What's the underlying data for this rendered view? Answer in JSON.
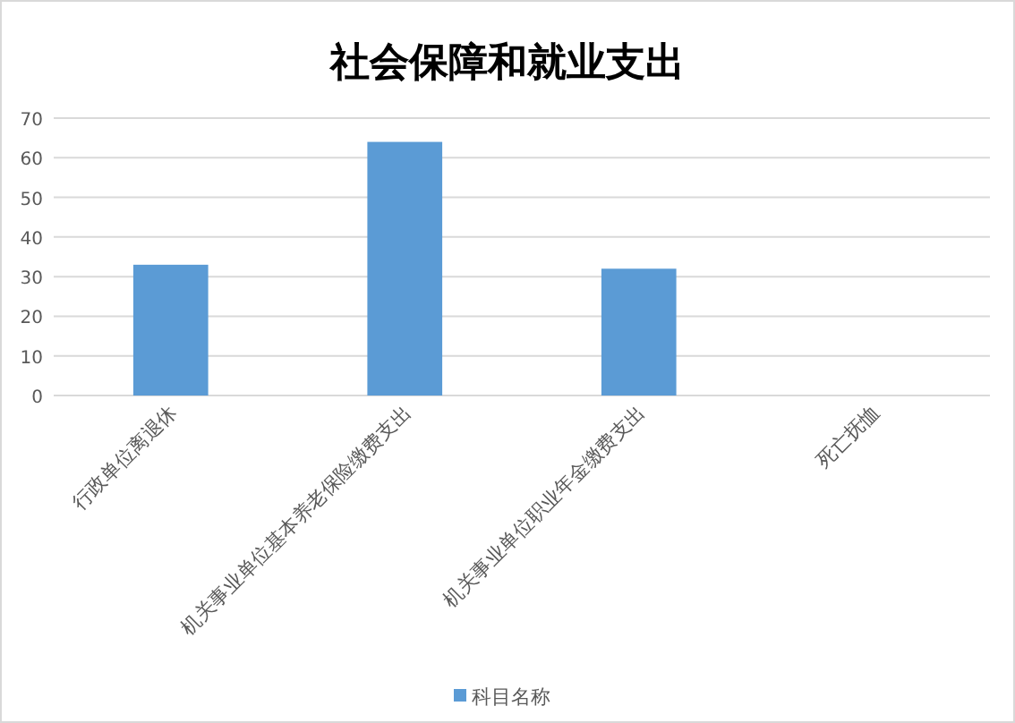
{
  "chart_data": {
    "type": "bar",
    "title": "社会保障和就业支出",
    "categories": [
      "行政单位离退休",
      "机关事业单位基本养老保险缴费支出",
      "机关事业单位职业年金缴费支出",
      "死亡抚恤"
    ],
    "series": [
      {
        "name": "科目名称",
        "color": "#5b9bd5",
        "values": [
          33,
          64,
          32,
          0
        ]
      }
    ],
    "ylim": [
      0,
      70
    ],
    "yticks": [
      0,
      10,
      20,
      30,
      40,
      50,
      60,
      70
    ],
    "grid": "y",
    "legend": "bottom"
  }
}
